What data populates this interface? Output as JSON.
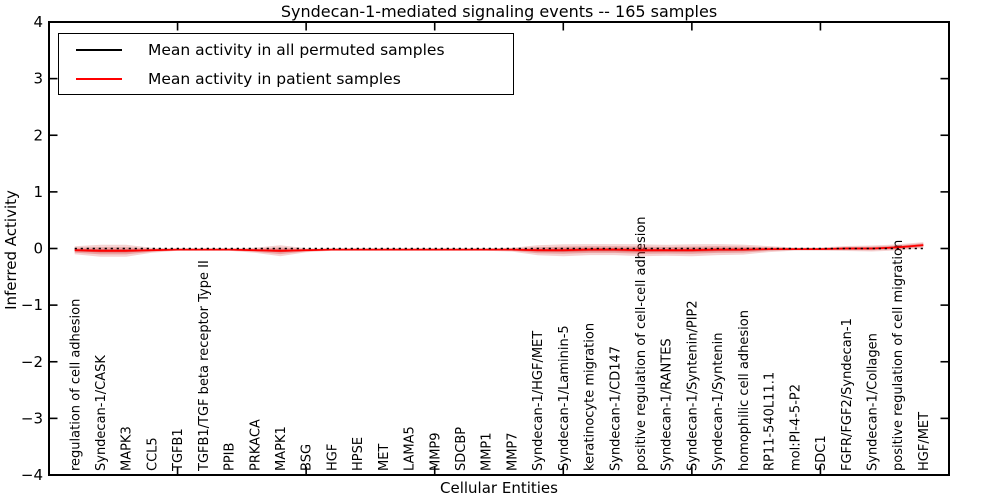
{
  "chart_data": {
    "type": "area",
    "title": "Syndecan-1-mediated signaling events -- 165 samples",
    "xlabel": "Cellular Entities",
    "ylabel": "Inferred Activity",
    "ylim": [
      -4,
      4
    ],
    "grid": false,
    "legend_position": "upper left",
    "yticks": [
      {
        "value": 4,
        "label": "4"
      },
      {
        "value": 3,
        "label": "3"
      },
      {
        "value": 2,
        "label": "2"
      },
      {
        "value": 1,
        "label": "1"
      },
      {
        "value": 0,
        "label": "0"
      },
      {
        "value": -1,
        "label": "−1"
      },
      {
        "value": -2,
        "label": "−2"
      },
      {
        "value": -3,
        "label": "−3"
      },
      {
        "value": -4,
        "label": "−4"
      }
    ],
    "categories": [
      "regulation of cell adhesion",
      "Syndecan-1/CASK",
      "MAPK3",
      "CCL5",
      "TGFB1",
      "TGFB1/TGF beta receptor Type II",
      "PPIB",
      "PRKACA",
      "MAPK1",
      "BSG",
      "HGF",
      "HPSE",
      "MET",
      "LAMA5",
      "MMP9",
      "SDCBP",
      "MMP1",
      "MMP7",
      "Syndecan-1/HGF/MET",
      "Syndecan-1/Laminin-5",
      "keratinocyte migration",
      "Syndecan-1/CD147",
      "positive regulation of cell-cell adhesion",
      "Syndecan-1/RANTES",
      "Syndecan-1/Syntenin/PIP2",
      "Syndecan-1/Syntenin",
      "homophilic cell adhesion",
      "RP11-540L11.1",
      "mol:PI-4-5-P2",
      "SDC1",
      "FGFR/FGF2/Syndecan-1",
      "Syndecan-1/Collagen",
      "positive regulation of cell migration",
      "HGF/MET"
    ],
    "series": [
      {
        "name": "Mean activity in all permuted samples",
        "color": "#000000",
        "style": "dotted",
        "values": [
          0,
          0,
          0,
          0,
          0,
          0,
          0,
          0,
          0,
          0,
          0,
          0,
          0,
          0,
          0,
          0,
          0,
          0,
          0,
          0,
          0,
          0,
          0,
          0,
          0,
          0,
          0,
          0,
          0,
          0,
          0,
          0,
          0,
          0
        ]
      },
      {
        "name": "Mean activity in patient samples",
        "color": "#ff0000",
        "style": "solid",
        "values": [
          -0.03,
          -0.04,
          -0.04,
          -0.03,
          -0.02,
          -0.02,
          -0.02,
          -0.03,
          -0.04,
          -0.03,
          -0.02,
          -0.02,
          -0.02,
          -0.02,
          -0.02,
          -0.02,
          -0.02,
          -0.02,
          -0.03,
          -0.03,
          -0.02,
          -0.02,
          -0.03,
          -0.03,
          -0.03,
          -0.02,
          -0.02,
          -0.01,
          -0.01,
          -0.01,
          0.0,
          0.0,
          0.02,
          0.06
        ]
      }
    ],
    "violin_halfwidth": [
      0.071,
      0.106,
      0.106,
      0.044,
      0.021,
      0.021,
      0.021,
      0.044,
      0.097,
      0.035,
      0.021,
      0.021,
      0.021,
      0.021,
      0.021,
      0.021,
      0.021,
      0.035,
      0.088,
      0.106,
      0.097,
      0.097,
      0.106,
      0.097,
      0.106,
      0.097,
      0.088,
      0.053,
      0.027,
      0.027,
      0.044,
      0.053,
      0.053,
      0.053
    ],
    "violin_color": "#cc2222"
  },
  "legend": {
    "items": [
      {
        "label": "Mean activity in all permuted samples",
        "color": "#000000"
      },
      {
        "label": "Mean activity in patient samples",
        "color": "#ff0000"
      }
    ]
  }
}
